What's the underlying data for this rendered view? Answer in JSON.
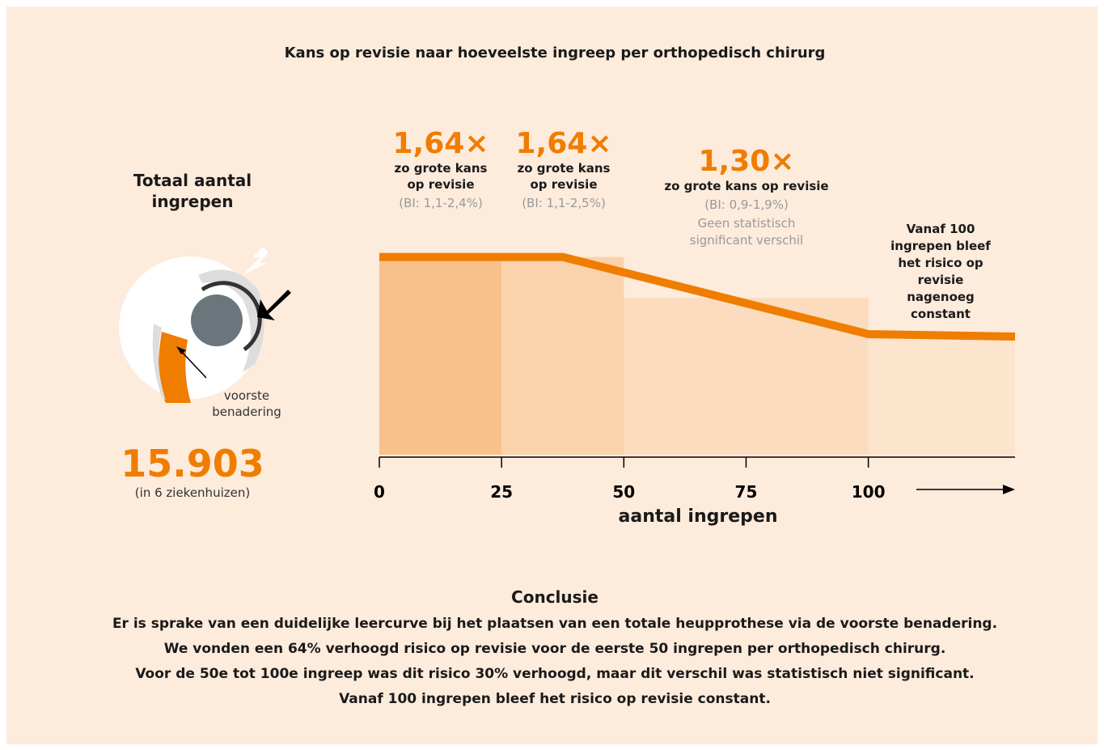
{
  "title": "Kans op revisie naar hoeveelste ingreep per orthopedisch chirurg",
  "left_panel": {
    "title": "Totaal aantal ingrepen",
    "arrow_label": "voorste benadering",
    "total": "15.903",
    "total_note": "(in 6 ziekenhuizen)"
  },
  "chart_data": {
    "type": "line",
    "x_label": "aantal ingrepen",
    "xlim": [
      0,
      130
    ],
    "xticks": [
      0,
      25,
      50,
      75,
      100
    ],
    "bars": {
      "bins": [
        0,
        25,
        50,
        100,
        130
      ],
      "values": [
        1.64,
        1.64,
        1.3,
        1.0
      ],
      "colors": [
        "#f8c08b",
        "#fad2ab",
        "#fbdcbe",
        "#fce4cd"
      ]
    },
    "series": [
      {
        "color": "#ef7d00",
        "x": [
          0,
          37.5,
          100,
          130
        ],
        "values": [
          1.64,
          1.64,
          1.0,
          0.98
        ]
      }
    ],
    "annotations": [
      {
        "big": "1,64×",
        "sub": "zo grote kans op revisie",
        "ci": "(BI: 1,1-2,4%)"
      },
      {
        "big": "1,64×",
        "sub": "zo grote kans op revisie",
        "ci": "(BI: 1,1-2,5%)"
      },
      {
        "big": "1,30×",
        "sub": "zo grote kans op revisie",
        "ci": "(BI: 0,9-1,9%)",
        "note": "Geen statistisch significant verschil"
      }
    ],
    "end_note": "Vanaf 100 ingrepen bleef het risico op revisie nagenoeg constant"
  },
  "conclusion": {
    "title": "Conclusie",
    "lines": [
      "Er is sprake van een duidelijke leercurve bij het plaatsen van een totale heupprothese via de voorste benadering.",
      "We vonden een 64% verhoogd risico op revisie voor de eerste 50 ingrepen per orthopedisch chirurg.",
      "Voor de 50e tot 100e ingreep was dit risico 30% verhoogd, maar dit verschil was statistisch niet significant.",
      "Vanaf 100 ingrepen bleef het risico op revisie constant."
    ]
  }
}
